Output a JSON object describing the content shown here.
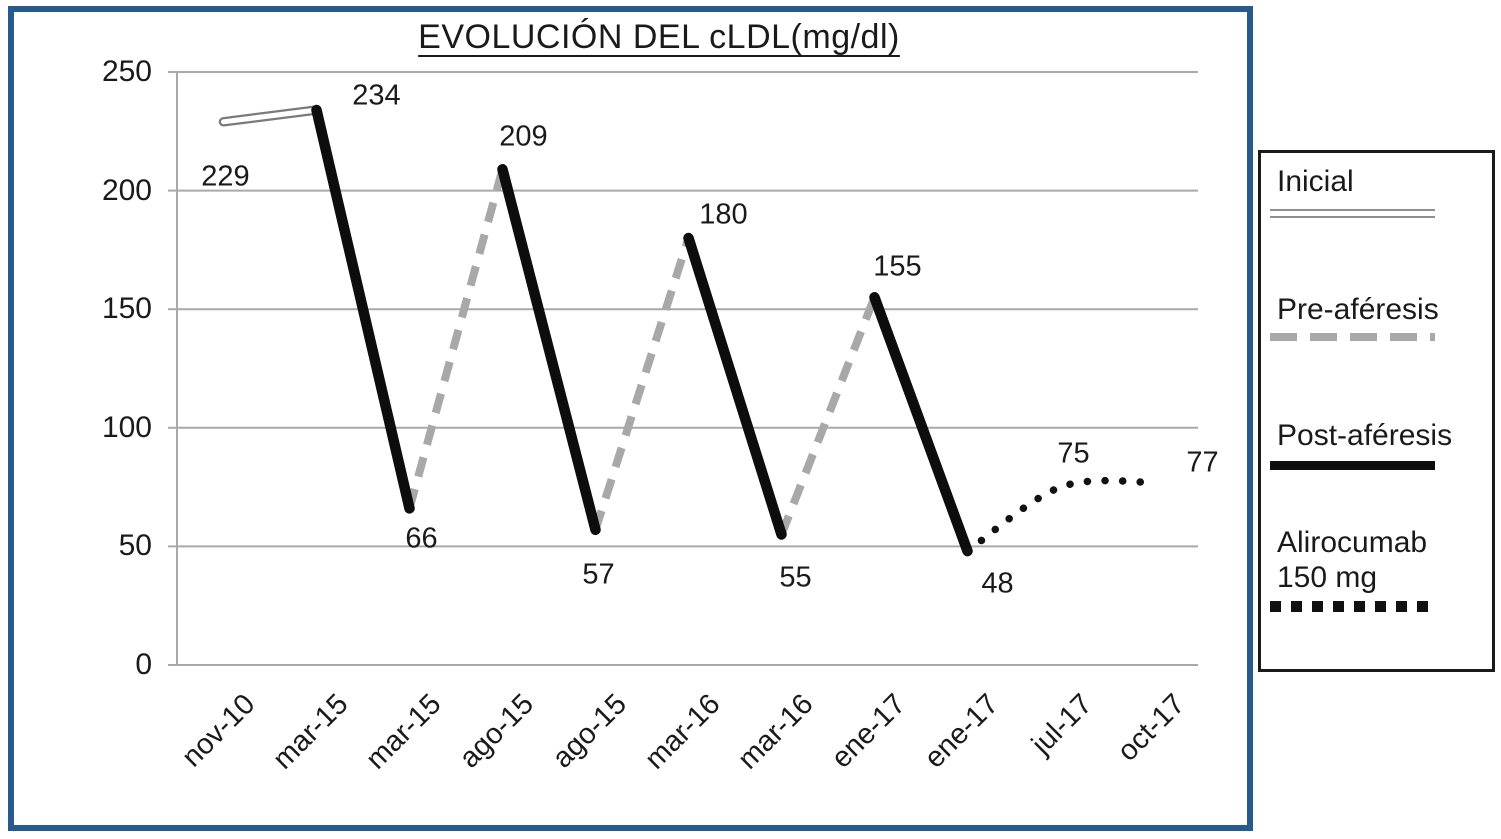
{
  "chart_data": {
    "type": "line",
    "title": "EVOLUCIÓN DEL cLDL(mg/dl)",
    "unit": "mg/dl",
    "ylim": [
      0,
      250
    ],
    "yticks": [
      0,
      50,
      100,
      150,
      200,
      250
    ],
    "grid": "horizontal",
    "legend_position": "right",
    "categories": [
      "nov-10",
      "mar-15",
      "mar-15",
      "ago-15",
      "ago-15",
      "mar-16",
      "mar-16",
      "ene-17",
      "ene-17",
      "jul-17",
      "oct-17"
    ],
    "points": [
      {
        "category": "nov-10",
        "value": 229
      },
      {
        "category": "mar-15",
        "value": 234
      },
      {
        "category": "mar-15",
        "value": 66
      },
      {
        "category": "ago-15",
        "value": 209
      },
      {
        "category": "ago-15",
        "value": 57
      },
      {
        "category": "mar-16",
        "value": 180
      },
      {
        "category": "mar-16",
        "value": 55
      },
      {
        "category": "ene-17",
        "value": 155
      },
      {
        "category": "ene-17",
        "value": 48
      },
      {
        "category": "jul-17",
        "value": 75
      },
      {
        "category": "oct-17",
        "value": 77
      }
    ],
    "series": [
      {
        "name": "Inicial",
        "style": "double-line",
        "color": "#7a7a7a",
        "segments": [
          [
            0,
            1
          ]
        ]
      },
      {
        "name": "Pre-aféresis",
        "style": "dashed",
        "color": "#a8a8a8",
        "segments": [
          [
            2,
            3
          ],
          [
            4,
            5
          ],
          [
            6,
            7
          ]
        ]
      },
      {
        "name": "Post-aféresis",
        "style": "solid",
        "color": "#0d0d0d",
        "segments": [
          [
            1,
            2
          ],
          [
            3,
            4
          ],
          [
            5,
            6
          ],
          [
            7,
            8
          ]
        ]
      },
      {
        "name": "Alirocumab 150 mg",
        "style": "dotted",
        "color": "#121212",
        "segments": [
          [
            8,
            9,
            10
          ]
        ]
      }
    ]
  },
  "legend": {
    "items": [
      {
        "lines": [
          "Inicial"
        ],
        "style": "double-line"
      },
      {
        "lines": [
          "Pre-aféresis"
        ],
        "style": "dashed"
      },
      {
        "lines": [
          "Post-aféresis"
        ],
        "style": "solid"
      },
      {
        "lines": [
          "Alirocumab",
          "150 mg"
        ],
        "style": "dotted"
      }
    ]
  },
  "colors": {
    "frame": "#275b8e",
    "grid": "#a9a9a9",
    "legend_border": "#1a1a1a",
    "text": "#1a1a1a"
  }
}
